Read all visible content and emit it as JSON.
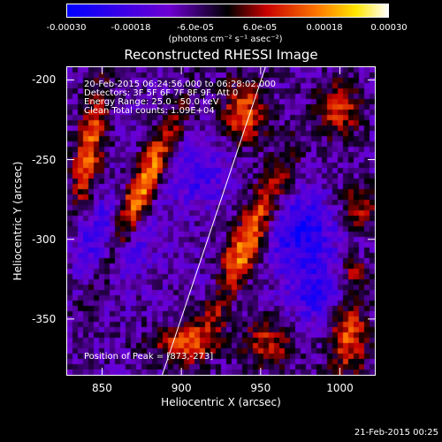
{
  "chart_data": {
    "type": "heatmap",
    "title": "Reconstructed RHESSI Image",
    "xlabel": "Heliocentric X (arcsec)",
    "ylabel": "Heliocentric Y (arcsec)",
    "xlim": [
      828,
      1022
    ],
    "ylim": [
      -385,
      -192
    ],
    "x_ticks": [
      "850",
      "900",
      "950",
      "1000"
    ],
    "x_tick_values": [
      850,
      900,
      950,
      1000
    ],
    "y_ticks": [
      "-200",
      "-250",
      "-300",
      "-350"
    ],
    "y_tick_values": [
      -200,
      -250,
      -300,
      -350
    ],
    "colorbar": {
      "ticks": [
        "-0.00030",
        "-0.00018",
        "-6.0e-05",
        "6.0e-05",
        "0.00018",
        "0.00030"
      ],
      "tick_values": [
        -0.0003,
        -0.00018,
        -6e-05,
        6e-05,
        0.00018,
        0.0003
      ],
      "range": [
        -0.0003,
        0.0003
      ],
      "units": "(photons cm⁻² s⁻¹ asec⁻²)"
    },
    "annotations": {
      "time_range": "20-Feb-2015 06:24:56.000 to 06:28:02.000",
      "detectors": "Detectors: 3F 5F 6F 7F 8F 9F, Att 0",
      "energy": "Energy Range: 25.0 - 50.0 keV",
      "clean": "Clean    Total counts: 1.09E+04",
      "peak": "Position of Peak = [873,-273]"
    },
    "sources": [
      {
        "x": 873,
        "y": -273,
        "sx": 6,
        "sy": 38,
        "angle": 25,
        "amp": 0.0003
      },
      {
        "x": 940,
        "y": -305,
        "sx": 7,
        "sy": 42,
        "angle": 25,
        "amp": 0.00027
      },
      {
        "x": 842,
        "y": -245,
        "sx": 6,
        "sy": 30,
        "angle": 10,
        "amp": 0.00022
      },
      {
        "x": 940,
        "y": -220,
        "sx": 10,
        "sy": 14,
        "angle": 0,
        "amp": 0.0002
      },
      {
        "x": 1005,
        "y": -360,
        "sx": 9,
        "sy": 18,
        "angle": 0,
        "amp": 0.00021
      },
      {
        "x": 1000,
        "y": -220,
        "sx": 9,
        "sy": 12,
        "angle": 0,
        "amp": 0.00018
      },
      {
        "x": 1012,
        "y": -280,
        "sx": 8,
        "sy": 10,
        "angle": 0,
        "amp": 0.00016
      },
      {
        "x": 900,
        "y": -365,
        "sx": 14,
        "sy": 8,
        "angle": 0,
        "amp": 0.00017
      },
      {
        "x": 955,
        "y": -365,
        "sx": 12,
        "sy": 10,
        "angle": 0,
        "amp": 0.00016
      },
      {
        "x": 1010,
        "y": -320,
        "sx": 6,
        "sy": 6,
        "angle": 0,
        "amp": 0.00014
      }
    ],
    "negative_regions": [
      {
        "x": 855,
        "y": -300,
        "s": 18,
        "amp": -0.00016
      },
      {
        "x": 975,
        "y": -295,
        "s": 16,
        "amp": -0.00018
      },
      {
        "x": 910,
        "y": -260,
        "s": 15,
        "amp": -0.00012
      },
      {
        "x": 985,
        "y": -335,
        "s": 14,
        "amp": -0.00014
      },
      {
        "x": 925,
        "y": -330,
        "s": 10,
        "amp": -0.0001
      }
    ],
    "limb_line": {
      "x1": 888,
      "y1": -385,
      "x2": 953,
      "y2": -192
    }
  },
  "footer": {
    "timestamp": "21-Feb-2015 00:25"
  }
}
